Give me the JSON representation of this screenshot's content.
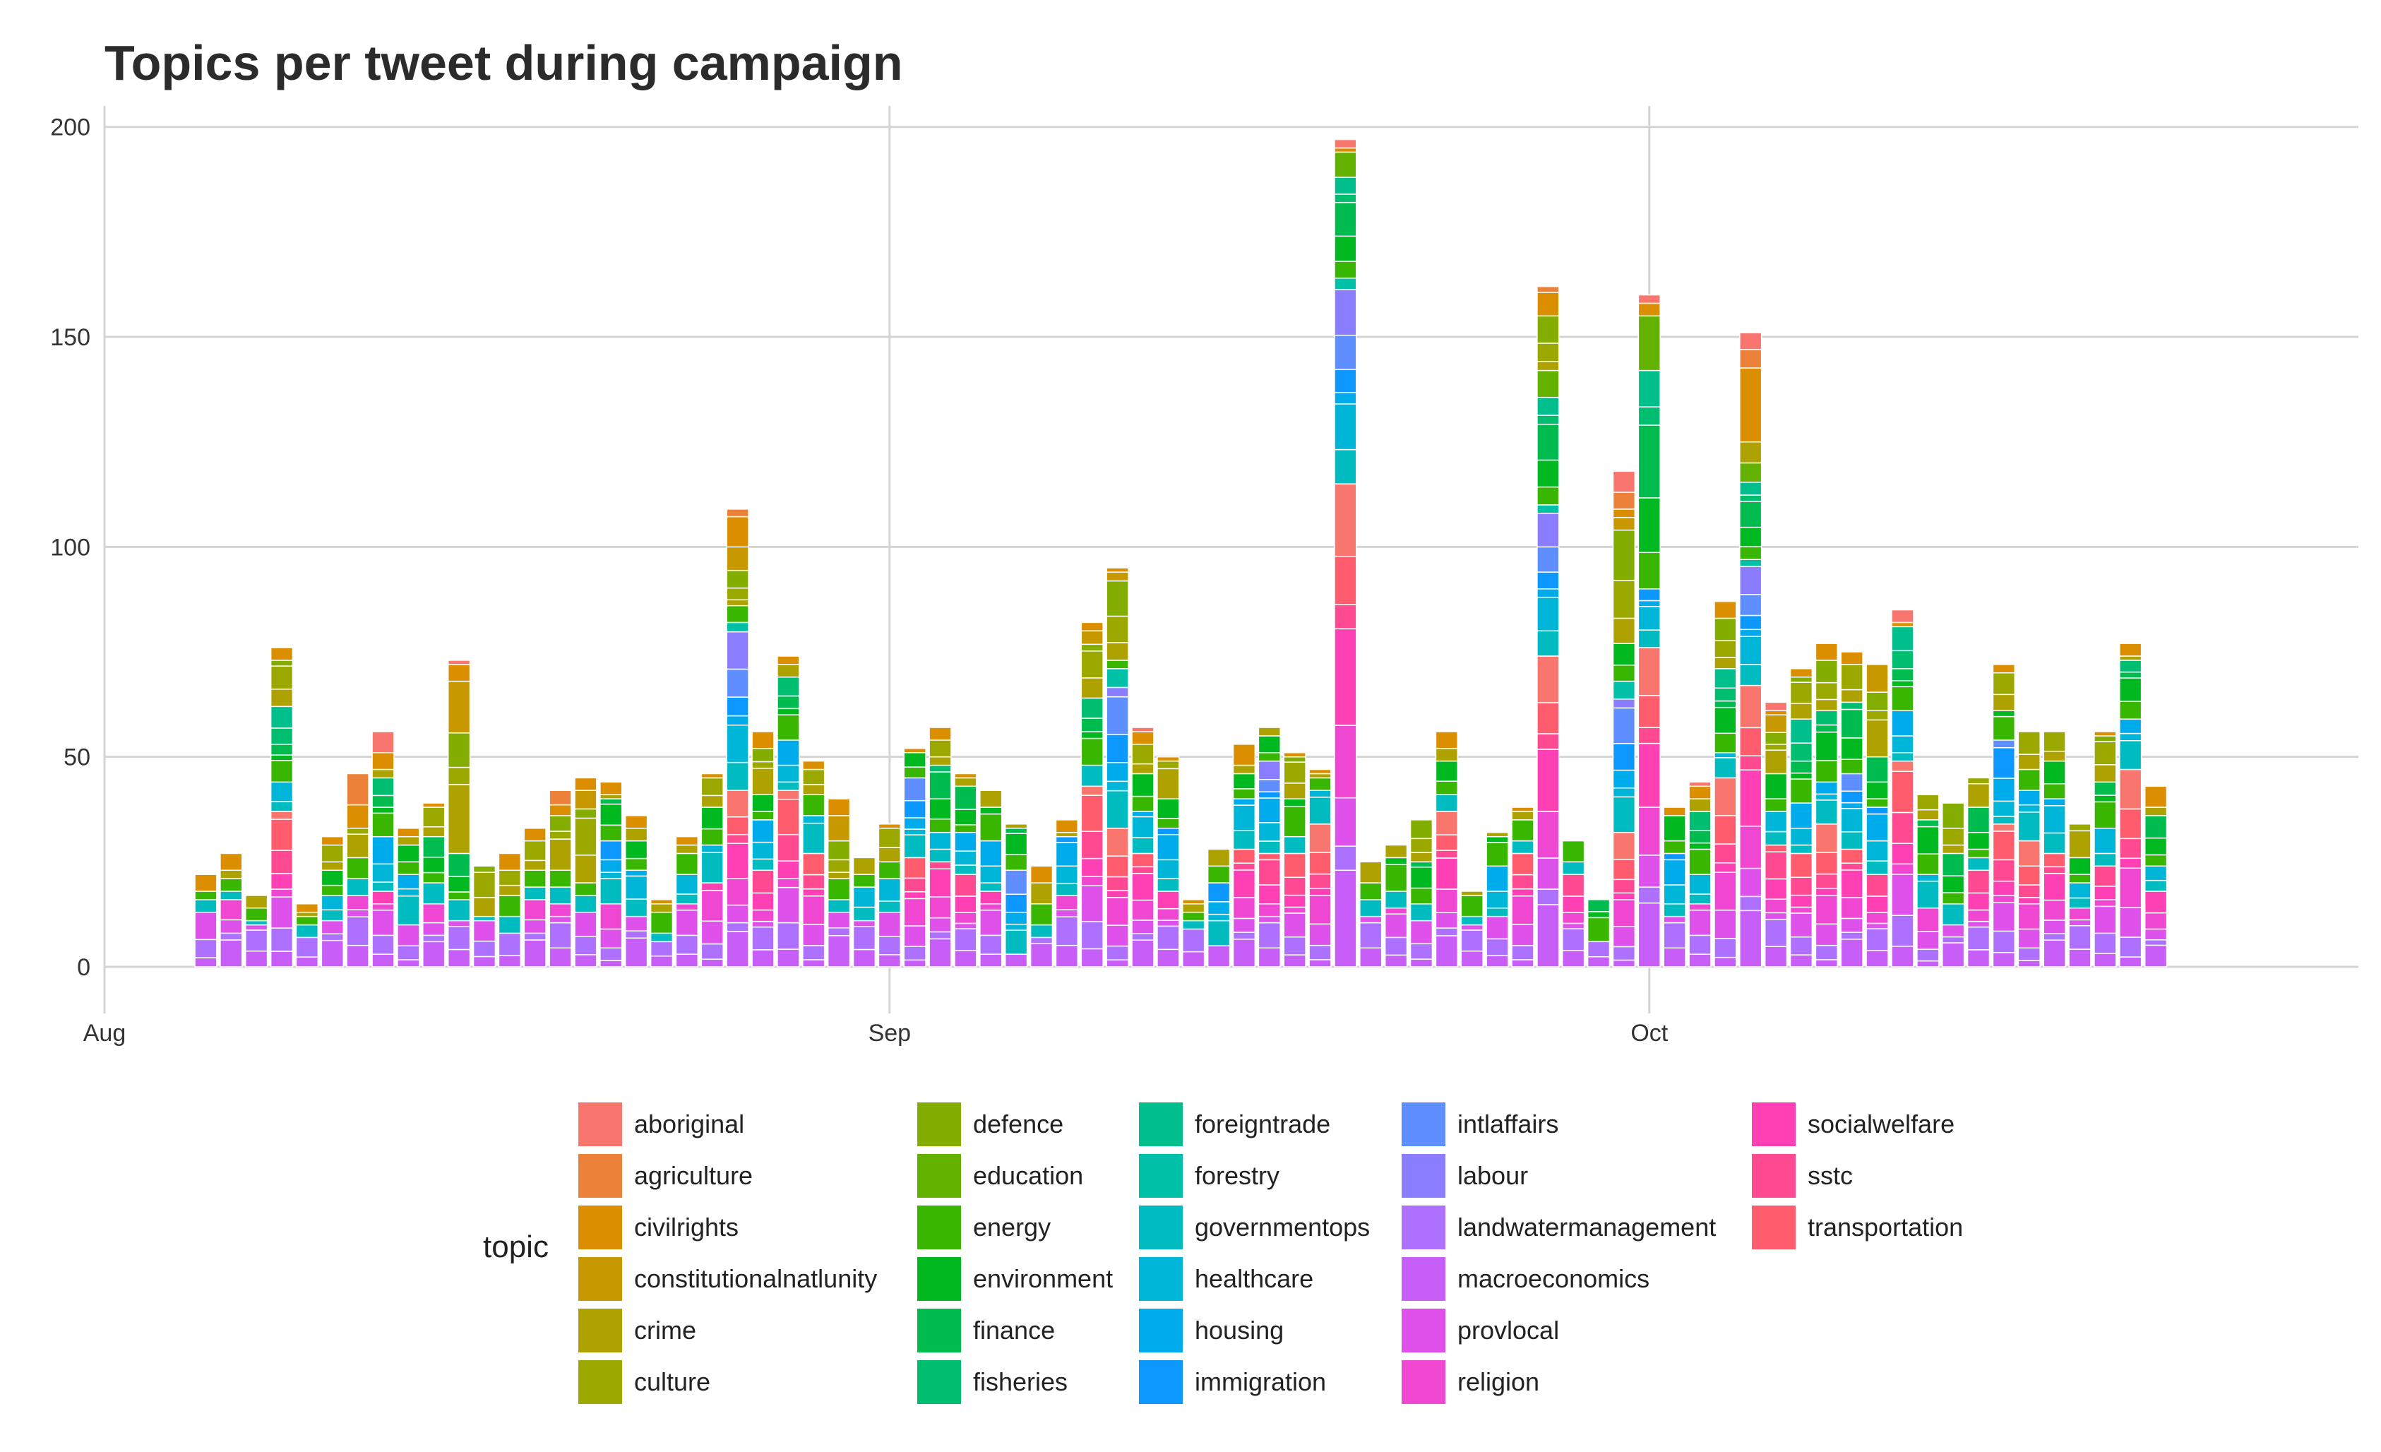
{
  "chart_data": {
    "type": "bar",
    "stacked": true,
    "title": "Topics per tweet during campaign",
    "xlabel": "",
    "ylabel": "",
    "ylim": [
      0,
      205
    ],
    "y_ticks": [
      0,
      50,
      100,
      150,
      200
    ],
    "x_range": [
      "2013-08-01",
      "2013-10-29"
    ],
    "x_ticks": [
      {
        "date": "2013-08-01",
        "label": "Aug"
      },
      {
        "date": "2013-09-01",
        "label": "Sep"
      },
      {
        "date": "2013-10-01",
        "label": "Oct"
      }
    ],
    "grid": true,
    "legend": {
      "title": "topic",
      "placement": "bottom"
    },
    "topics": [
      {
        "name": "aboriginal",
        "color": "#F8766D"
      },
      {
        "name": "agriculture",
        "color": "#EC8239"
      },
      {
        "name": "civilrights",
        "color": "#DB8E00"
      },
      {
        "name": "constitutionalnatlunity",
        "color": "#C79800"
      },
      {
        "name": "crime",
        "color": "#AEA200"
      },
      {
        "name": "culture",
        "color": "#9AA800"
      },
      {
        "name": "defence",
        "color": "#83AD00"
      },
      {
        "name": "education",
        "color": "#63B200"
      },
      {
        "name": "energy",
        "color": "#39B600"
      },
      {
        "name": "environment",
        "color": "#00B81F"
      },
      {
        "name": "finance",
        "color": "#00BB4E"
      },
      {
        "name": "fisheries",
        "color": "#00BE70"
      },
      {
        "name": "foreigntrade",
        "color": "#00BF8C"
      },
      {
        "name": "forestry",
        "color": "#00C0A7"
      },
      {
        "name": "governmentops",
        "color": "#00BCC1"
      },
      {
        "name": "healthcare",
        "color": "#00B6D8"
      },
      {
        "name": "housing",
        "color": "#00ABEC"
      },
      {
        "name": "immigration",
        "color": "#0C98FF"
      },
      {
        "name": "intlaffairs",
        "color": "#5E8EFF"
      },
      {
        "name": "labour",
        "color": "#8B7DFF"
      },
      {
        "name": "landwatermanagement",
        "color": "#AE70FF"
      },
      {
        "name": "macroeconomics",
        "color": "#C85EF8"
      },
      {
        "name": "provlocal",
        "color": "#DE51EB"
      },
      {
        "name": "religion",
        "color": "#F047D3"
      },
      {
        "name": "socialwelfare",
        "color": "#FF40B4"
      },
      {
        "name": "sstc",
        "color": "#FF4A92"
      },
      {
        "name": "transportation",
        "color": "#FF5C6E"
      }
    ],
    "dates": [
      "2013-08-05",
      "2013-08-06",
      "2013-08-07",
      "2013-08-08",
      "2013-08-09",
      "2013-08-10",
      "2013-08-11",
      "2013-08-12",
      "2013-08-13",
      "2013-08-14",
      "2013-08-15",
      "2013-08-16",
      "2013-08-17",
      "2013-08-18",
      "2013-08-19",
      "2013-08-20",
      "2013-08-21",
      "2013-08-22",
      "2013-08-23",
      "2013-08-24",
      "2013-08-25",
      "2013-08-26",
      "2013-08-27",
      "2013-08-28",
      "2013-08-29",
      "2013-08-30",
      "2013-08-31",
      "2013-09-01",
      "2013-09-02",
      "2013-09-03",
      "2013-09-04",
      "2013-09-05",
      "2013-09-06",
      "2013-09-07",
      "2013-09-08",
      "2013-09-09",
      "2013-09-10",
      "2013-09-11",
      "2013-09-12",
      "2013-09-13",
      "2013-09-14",
      "2013-09-15",
      "2013-09-16",
      "2013-09-17",
      "2013-09-18",
      "2013-09-19",
      "2013-09-20",
      "2013-09-21",
      "2013-09-22",
      "2013-09-23",
      "2013-09-24",
      "2013-09-25",
      "2013-09-26",
      "2013-09-27",
      "2013-09-28",
      "2013-09-29",
      "2013-09-30",
      "2013-10-01",
      "2013-10-02",
      "2013-10-03",
      "2013-10-04",
      "2013-10-05",
      "2013-10-06",
      "2013-10-07",
      "2013-10-08",
      "2013-10-09",
      "2013-10-10",
      "2013-10-11",
      "2013-10-12",
      "2013-10-13",
      "2013-10-14",
      "2013-10-15",
      "2013-10-16",
      "2013-10-17",
      "2013-10-18",
      "2013-10-19",
      "2013-10-20",
      "2013-10-21"
    ],
    "topic_groups": [
      "pink / macroeconomics",
      "blue / health / housing",
      "green / energy / environment",
      "olive / defence / culture",
      "orange / civilrights",
      "aboriginal"
    ],
    "daily_group_values": [
      [
        13,
        3,
        2,
        0,
        4,
        0
      ],
      [
        16,
        2,
        3,
        2,
        4,
        0
      ],
      [
        10,
        1,
        3,
        3,
        0,
        0
      ],
      [
        37,
        7,
        18,
        11,
        3,
        0
      ],
      [
        7,
        3,
        2,
        1,
        2,
        0
      ],
      [
        11,
        6,
        6,
        6,
        2,
        0
      ],
      [
        17,
        4,
        5,
        7,
        13,
        0
      ],
      [
        18,
        13,
        14,
        2,
        4,
        5
      ],
      [
        10,
        12,
        7,
        2,
        2,
        0
      ],
      [
        15,
        5,
        11,
        7,
        1,
        0
      ],
      [
        11,
        5,
        11,
        41,
        4,
        1
      ],
      [
        11,
        1,
        0,
        12,
        0,
        0
      ],
      [
        8,
        4,
        5,
        6,
        4,
        0
      ],
      [
        16,
        3,
        4,
        7,
        3,
        0
      ],
      [
        15,
        4,
        4,
        13,
        6,
        0
      ],
      [
        13,
        4,
        3,
        22,
        3,
        0
      ],
      [
        15,
        15,
        10,
        1,
        3,
        0
      ],
      [
        12,
        11,
        7,
        3,
        3,
        0
      ],
      [
        6,
        2,
        5,
        2,
        1,
        0
      ],
      [
        15,
        7,
        5,
        2,
        2,
        0
      ],
      [
        20,
        9,
        9,
        7,
        1,
        0
      ],
      [
        42,
        40,
        4,
        14,
        9,
        0
      ],
      [
        23,
        12,
        6,
        11,
        4,
        0
      ],
      [
        42,
        12,
        15,
        3,
        2,
        0
      ],
      [
        27,
        9,
        5,
        6,
        2,
        0
      ],
      [
        13,
        3,
        5,
        15,
        4,
        0
      ],
      [
        11,
        8,
        3,
        4,
        0,
        0
      ],
      [
        13,
        8,
        4,
        8,
        1,
        0
      ],
      [
        26,
        19,
        6,
        0,
        1,
        0
      ],
      [
        25,
        7,
        16,
        6,
        3,
        0
      ],
      [
        22,
        10,
        11,
        2,
        1,
        0
      ],
      [
        18,
        12,
        8,
        4,
        0,
        0
      ],
      [
        3,
        20,
        10,
        1,
        0,
        0
      ],
      [
        7,
        3,
        5,
        5,
        4,
        0
      ],
      [
        17,
        14,
        0,
        1,
        3,
        0
      ],
      [
        43,
        5,
        16,
        16,
        2,
        0
      ],
      [
        33,
        38,
        2,
        21,
        1,
        0
      ],
      [
        27,
        10,
        9,
        7,
        3,
        1
      ],
      [
        18,
        15,
        7,
        9,
        1,
        0
      ],
      [
        9,
        2,
        2,
        2,
        1,
        0
      ],
      [
        5,
        15,
        4,
        4,
        0,
        0
      ],
      [
        28,
        12,
        6,
        2,
        5,
        0
      ],
      [
        27,
        22,
        6,
        2,
        0,
        0
      ],
      [
        27,
        4,
        9,
        10,
        1,
        0
      ],
      [
        34,
        8,
        3,
        1,
        1,
        0
      ],
      [
        115,
        49,
        30,
        0,
        1,
        2
      ],
      [
        12,
        4,
        4,
        5,
        0,
        0
      ],
      [
        14,
        4,
        8,
        3,
        0,
        0
      ],
      [
        11,
        4,
        10,
        10,
        0,
        0
      ],
      [
        37,
        4,
        8,
        3,
        4,
        0
      ],
      [
        10,
        2,
        5,
        1,
        0,
        0
      ],
      [
        12,
        12,
        7,
        1,
        0,
        0
      ],
      [
        27,
        3,
        5,
        2,
        1,
        0
      ],
      [
        74,
        36,
        32,
        13,
        7,
        0
      ],
      [
        22,
        3,
        5,
        0,
        0,
        0
      ],
      [
        6,
        0,
        10,
        0,
        0,
        0
      ],
      [
        32,
        36,
        9,
        30,
        6,
        5
      ],
      [
        76,
        14,
        65,
        0,
        3,
        2
      ],
      [
        12,
        15,
        9,
        0,
        2,
        0
      ],
      [
        15,
        7,
        15,
        3,
        3,
        1
      ],
      [
        45,
        6,
        20,
        12,
        4,
        0
      ],
      [
        67,
        30,
        23,
        5,
        22,
        4
      ],
      [
        29,
        8,
        9,
        14,
        1,
        2
      ],
      [
        27,
        12,
        20,
        10,
        2,
        0
      ],
      [
        34,
        10,
        17,
        12,
        4,
        0
      ],
      [
        28,
        18,
        17,
        9,
        3,
        0
      ],
      [
        22,
        16,
        12,
        22,
        0,
        0
      ],
      [
        49,
        12,
        20,
        0,
        1,
        3
      ],
      [
        14,
        8,
        13,
        6,
        0,
        0
      ],
      [
        10,
        5,
        12,
        12,
        0,
        0
      ],
      [
        23,
        3,
        12,
        7,
        0,
        0
      ],
      [
        34,
        20,
        7,
        9,
        2,
        0
      ],
      [
        30,
        12,
        5,
        9,
        0,
        0
      ],
      [
        27,
        13,
        9,
        7,
        0,
        0
      ],
      [
        14,
        6,
        6,
        8,
        0,
        0
      ],
      [
        24,
        9,
        11,
        11,
        1,
        0
      ],
      [
        47,
        12,
        14,
        1,
        3,
        0
      ],
      [
        18,
        6,
        12,
        2,
        5,
        0
      ]
    ]
  }
}
